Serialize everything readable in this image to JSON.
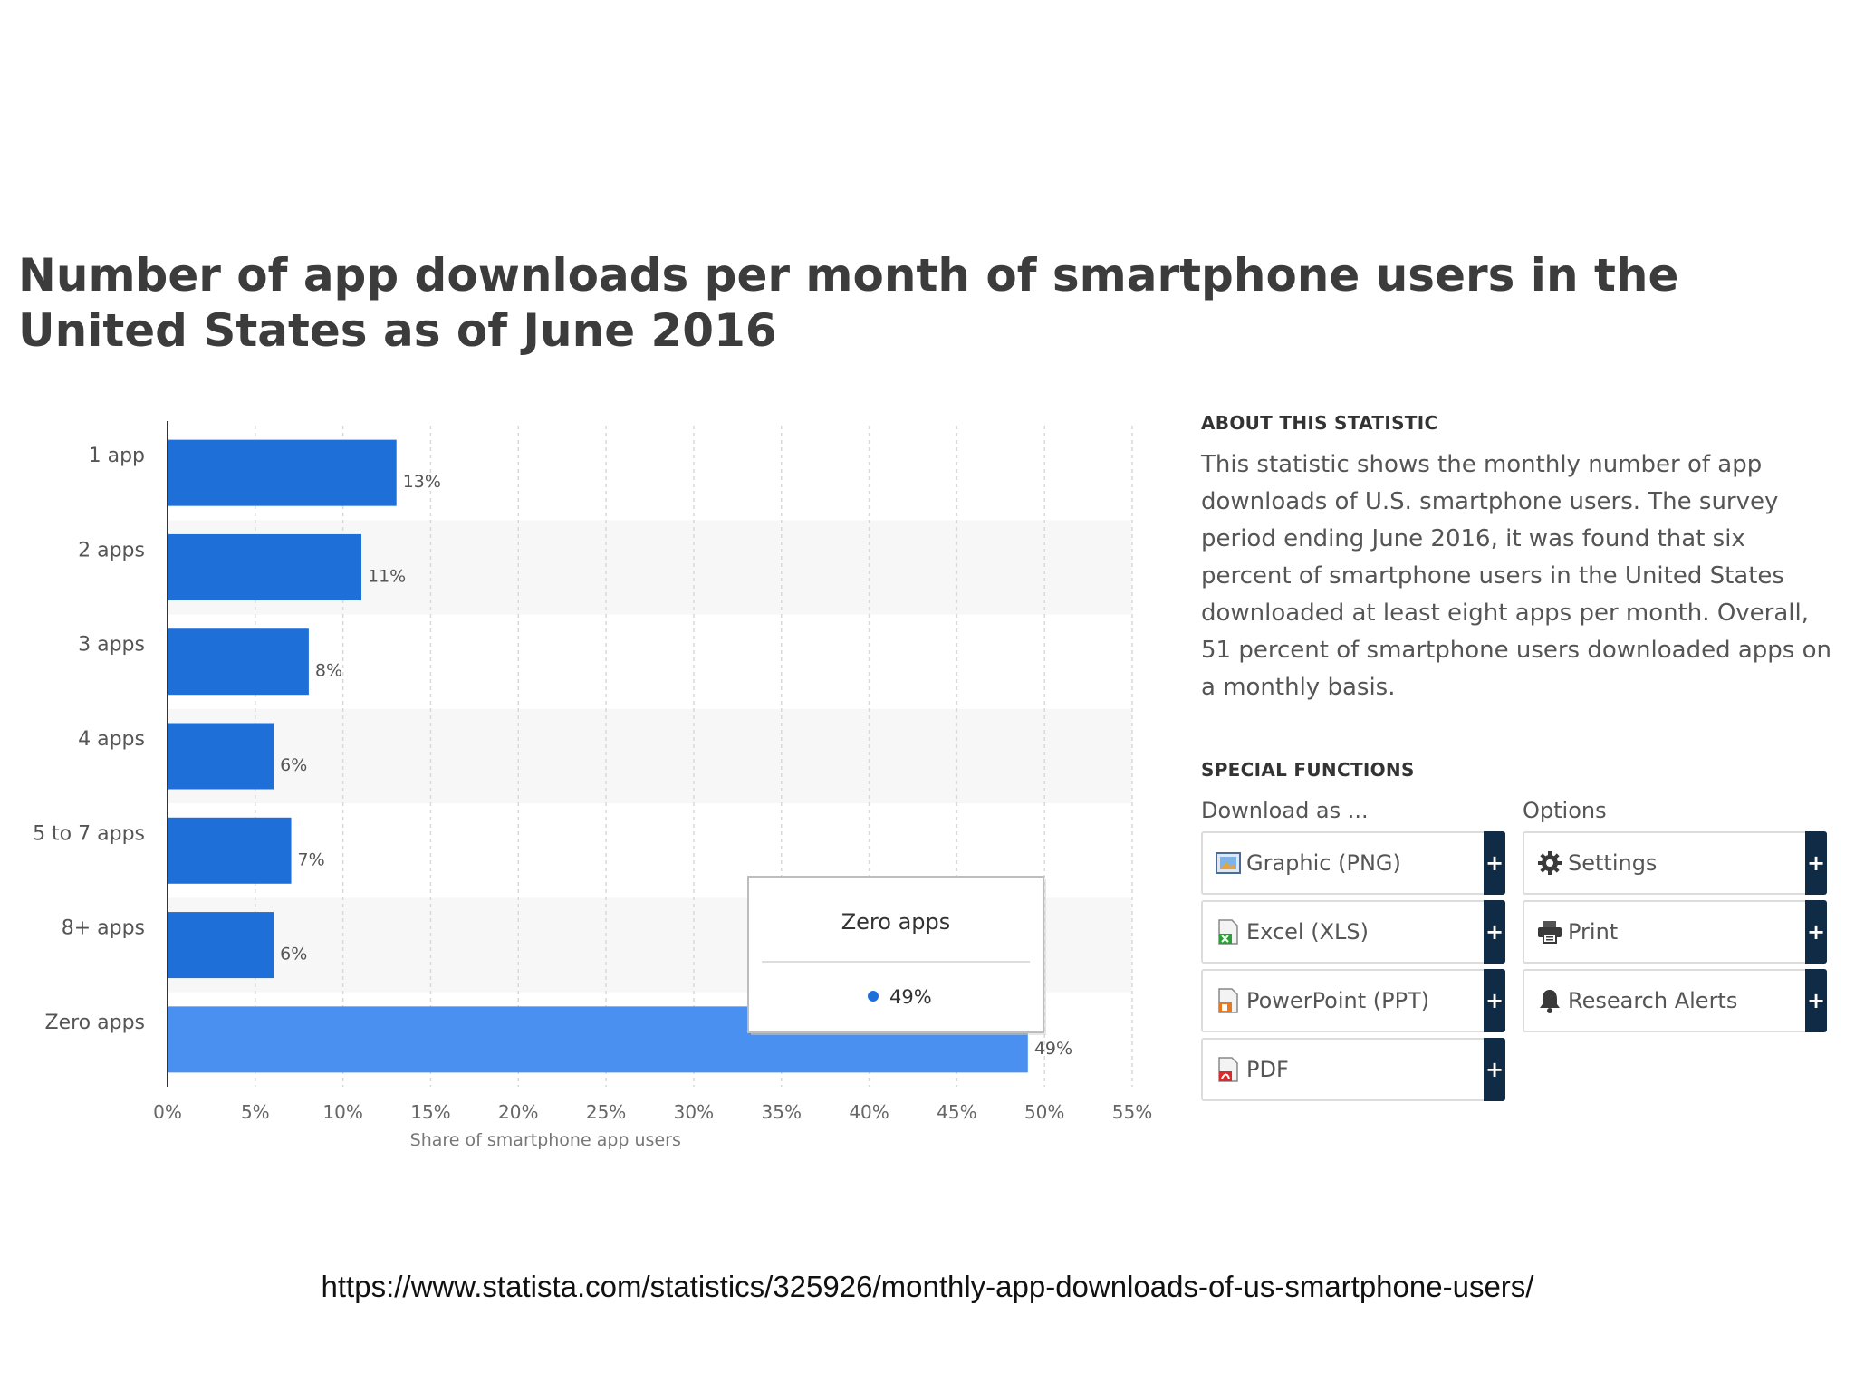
{
  "title": "Number of app downloads per month of smartphone users in the United States as of June 2016",
  "chart_data": {
    "type": "bar",
    "orientation": "horizontal",
    "categories": [
      "1 app",
      "2 apps",
      "3 apps",
      "4 apps",
      "5 to 7 apps",
      "8+ apps",
      "Zero apps"
    ],
    "values": [
      13,
      11,
      8,
      6,
      7,
      6,
      49
    ],
    "value_labels": [
      "13%",
      "11%",
      "8%",
      "6%",
      "7%",
      "6%",
      "49%"
    ],
    "xlabel": "Share of smartphone app users",
    "xlim": [
      0,
      55
    ],
    "xticks": [
      "0%",
      "5%",
      "10%",
      "15%",
      "20%",
      "25%",
      "30%",
      "35%",
      "40%",
      "45%",
      "50%",
      "55%"
    ],
    "grid": true,
    "highlighted_index": 6,
    "colors": {
      "bar": "#1f6fd9",
      "bar_highlight": "#4a90f0",
      "band": "#f7f7f7",
      "grid": "#d9d9d9"
    },
    "tooltip": {
      "title": "Zero apps",
      "value": "49%",
      "marker_color": "#1f6fd9"
    }
  },
  "about": {
    "heading": "ABOUT THIS STATISTIC",
    "text": "This statistic shows the monthly number of app downloads of U.S. smartphone users. The survey period ending June 2016, it was found that six percent of smartphone users in the United States downloaded at least eight apps per month. Overall, 51 percent of smartphone users downloaded apps on a monthly basis."
  },
  "special_functions": {
    "heading": "SPECIAL FUNCTIONS",
    "download_label": "Download as ...",
    "options_label": "Options",
    "download_items": [
      {
        "label": "Graphic (PNG)",
        "icon": "image-file-icon"
      },
      {
        "label": "Excel (XLS)",
        "icon": "excel-file-icon"
      },
      {
        "label": "PowerPoint (PPT)",
        "icon": "powerpoint-file-icon"
      },
      {
        "label": "PDF",
        "icon": "pdf-file-icon"
      }
    ],
    "option_items": [
      {
        "label": "Settings",
        "icon": "gear-icon"
      },
      {
        "label": "Print",
        "icon": "printer-icon"
      },
      {
        "label": "Research Alerts",
        "icon": "bell-icon"
      }
    ],
    "plus_symbol": "+"
  },
  "source_url": "https://www.statista.com/statistics/325926/monthly-app-downloads-of-us-smartphone-users/"
}
